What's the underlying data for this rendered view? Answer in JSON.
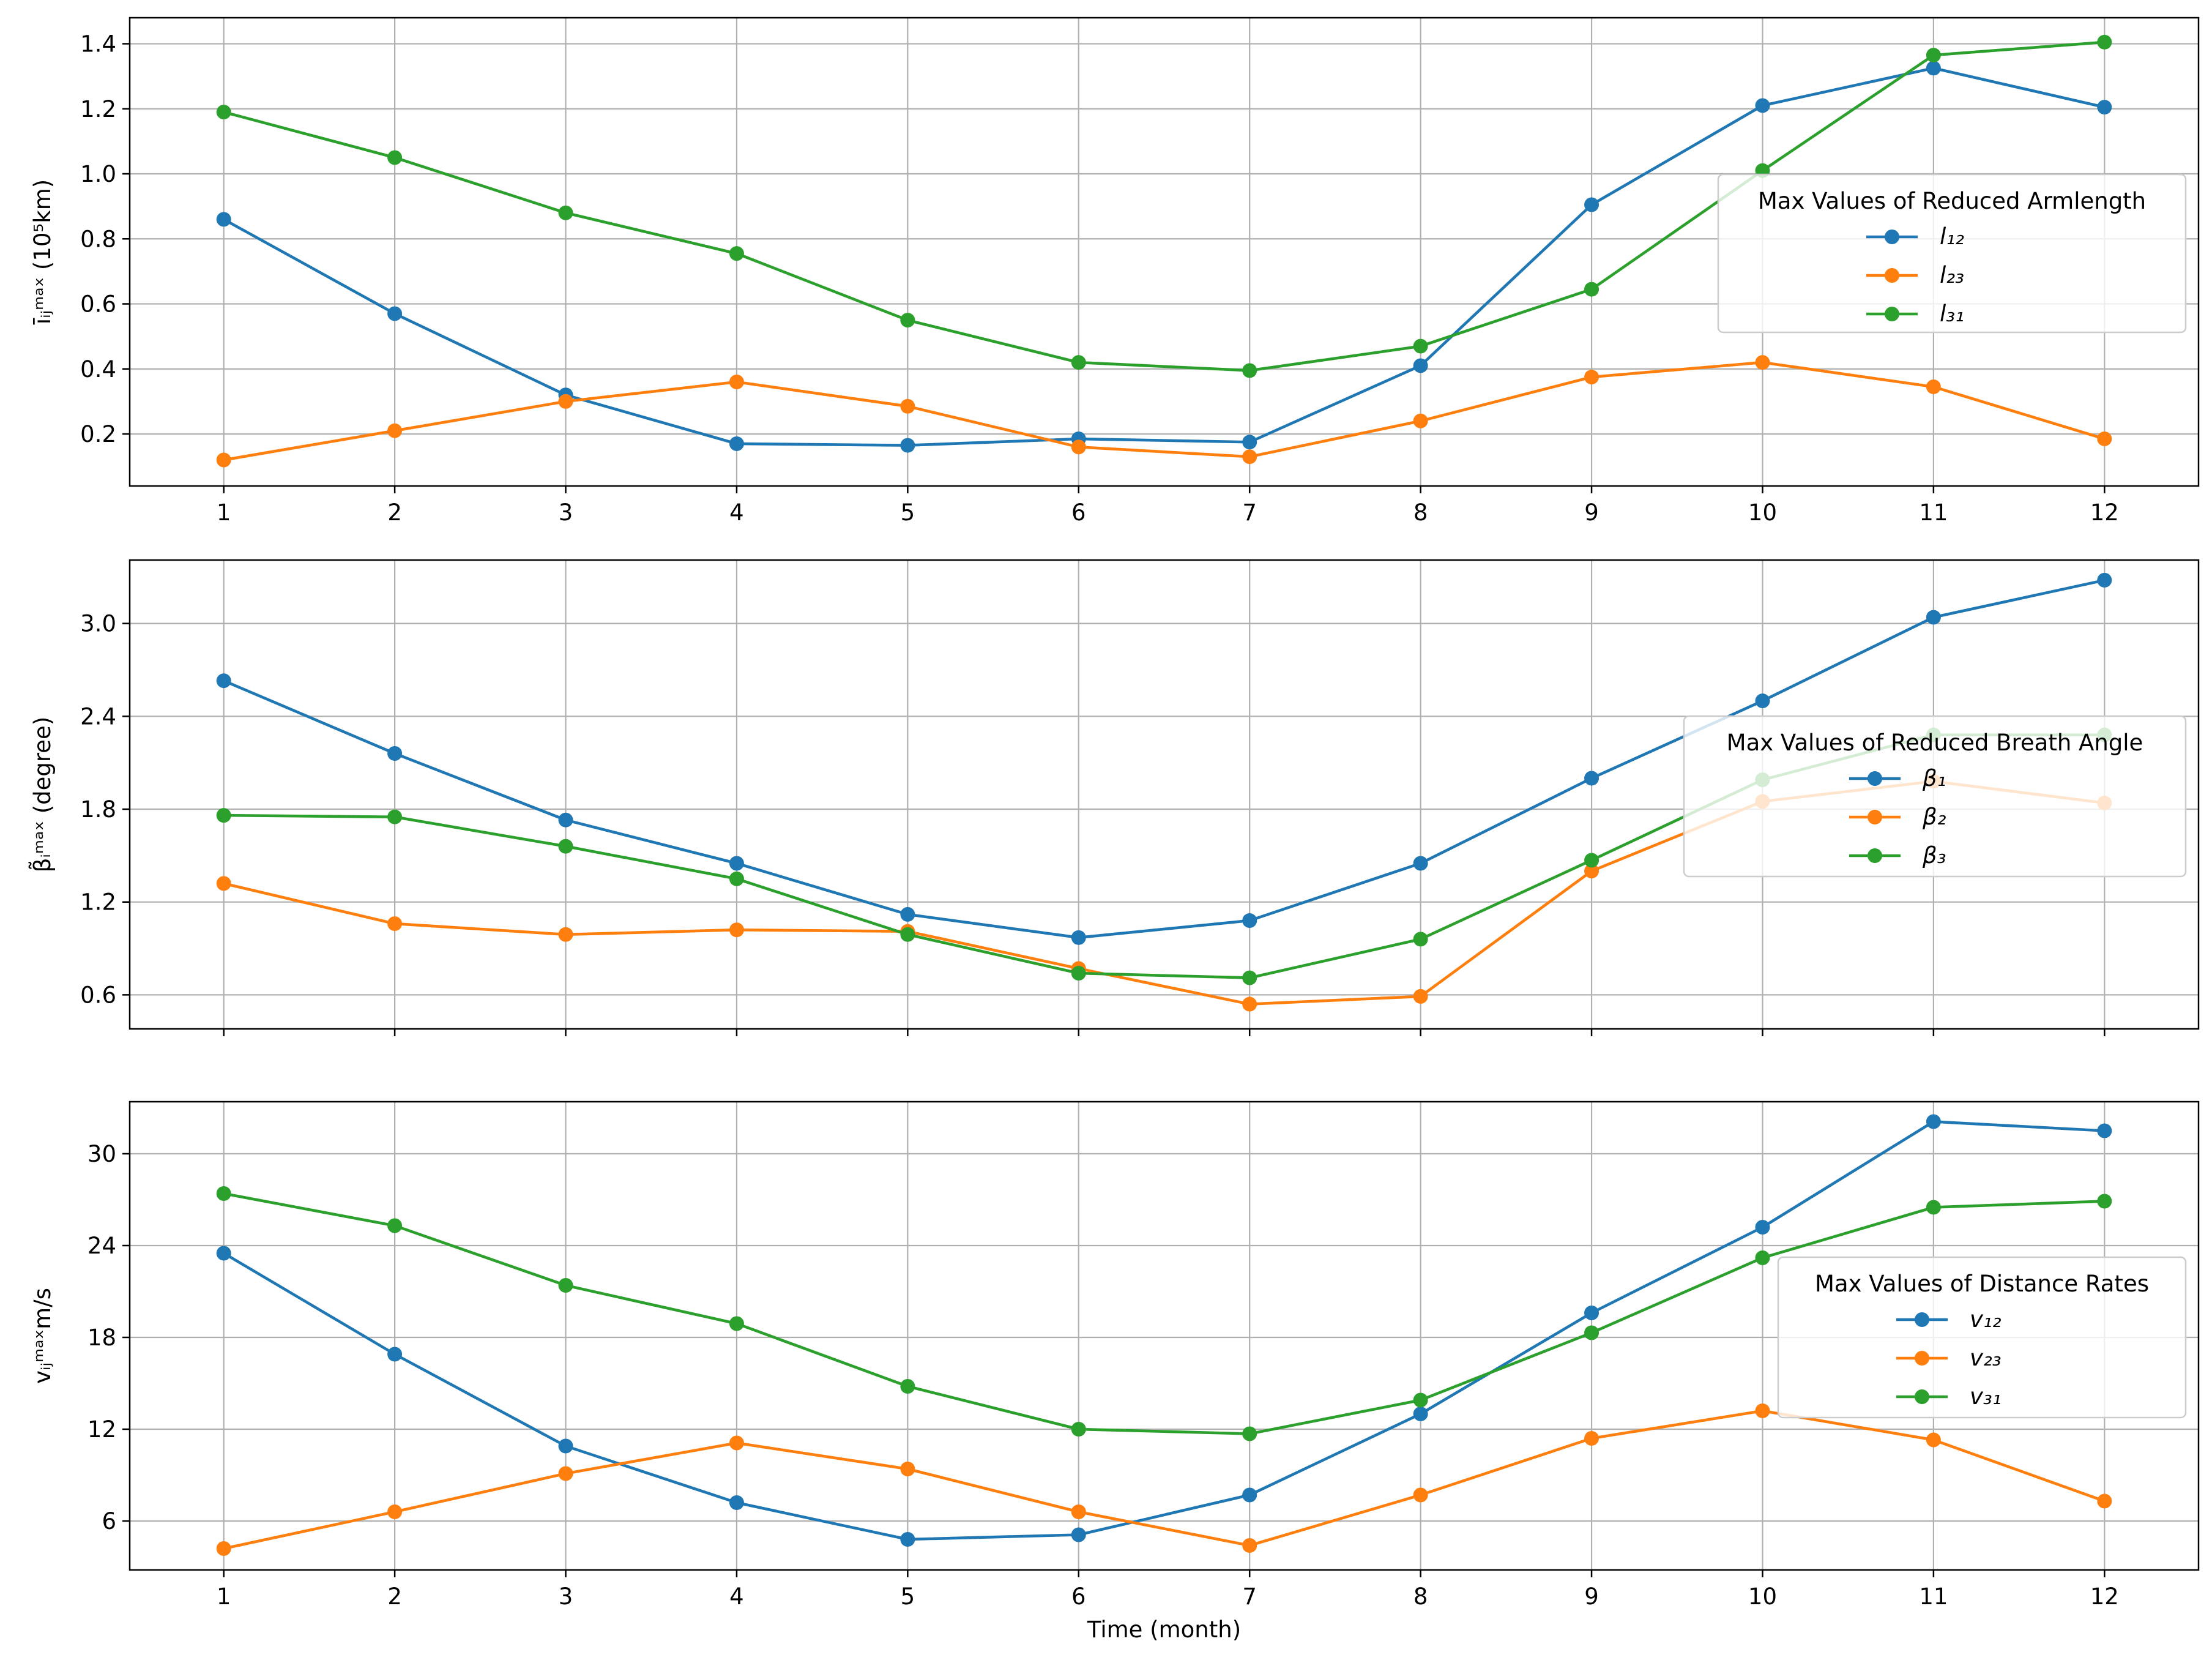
{
  "chart_data": [
    {
      "type": "line",
      "x": [
        1,
        2,
        3,
        4,
        5,
        6,
        7,
        8,
        9,
        10,
        11,
        12
      ],
      "xticks": [
        "1",
        "2",
        "3",
        "4",
        "5",
        "6",
        "7",
        "8",
        "9",
        "10",
        "11",
        "12"
      ],
      "show_xtick_labels": true,
      "ylabel": "īᵢⱼᵐᵃˣ (10⁵km)",
      "xlabel": "",
      "ylim": [
        0.04,
        1.48
      ],
      "yticks": [
        0.2,
        0.4,
        0.6,
        0.8,
        1.0,
        1.2,
        1.4
      ],
      "ytick_labels": [
        "0.2",
        "0.4",
        "0.6",
        "0.8",
        "1.0",
        "1.2",
        "1.4"
      ],
      "grid": true,
      "legend": {
        "title": "Max Values of Reduced Armlength",
        "placement": "center-right",
        "labels": [
          "l₁₂",
          "l₂₃",
          "l₃₁"
        ]
      },
      "series": [
        {
          "name": "l₁₂",
          "color": "#1f77b4",
          "values": [
            0.86,
            0.57,
            0.32,
            0.17,
            0.165,
            0.185,
            0.175,
            0.41,
            0.905,
            1.21,
            1.325,
            1.205
          ]
        },
        {
          "name": "l₂₃",
          "color": "#ff7f0e",
          "values": [
            0.12,
            0.21,
            0.3,
            0.36,
            0.285,
            0.16,
            0.13,
            0.24,
            0.375,
            0.42,
            0.345,
            0.185
          ]
        },
        {
          "name": "l₃₁",
          "color": "#2ca02c",
          "values": [
            1.19,
            1.05,
            0.88,
            0.755,
            0.55,
            0.42,
            0.395,
            0.47,
            0.645,
            1.01,
            1.365,
            1.405
          ]
        }
      ]
    },
    {
      "type": "line",
      "x": [
        1,
        2,
        3,
        4,
        5,
        6,
        7,
        8,
        9,
        10,
        11,
        12
      ],
      "xticks": [
        "1",
        "2",
        "3",
        "4",
        "5",
        "6",
        "7",
        "8",
        "9",
        "10",
        "11",
        "12"
      ],
      "show_xtick_labels": false,
      "ylabel": "β̃ᵢᵐᵃˣ (degree)",
      "xlabel": "",
      "ylim": [
        0.38,
        3.41
      ],
      "yticks": [
        0.6,
        1.2,
        1.8,
        2.4,
        3.0
      ],
      "ytick_labels": [
        "0.6",
        "1.2",
        "1.8",
        "2.4",
        "3.0"
      ],
      "grid": true,
      "legend": {
        "title": "Max Values of Reduced Breath Angle",
        "placement": "center-right",
        "labels": [
          "β₁",
          "β₂",
          "β₃"
        ]
      },
      "series": [
        {
          "name": "β₁",
          "color": "#1f77b4",
          "values": [
            2.63,
            2.16,
            1.73,
            1.45,
            1.12,
            0.97,
            1.08,
            1.45,
            2.0,
            2.5,
            3.04,
            3.28
          ]
        },
        {
          "name": "β₂",
          "color": "#ff7f0e",
          "values": [
            1.32,
            1.06,
            0.99,
            1.02,
            1.01,
            0.77,
            0.54,
            0.59,
            1.4,
            1.85,
            1.98,
            1.84
          ]
        },
        {
          "name": "β₃",
          "color": "#2ca02c",
          "values": [
            1.76,
            1.75,
            1.56,
            1.35,
            0.99,
            0.74,
            0.71,
            0.96,
            1.47,
            1.99,
            2.28,
            2.28
          ]
        }
      ]
    },
    {
      "type": "line",
      "x": [
        1,
        2,
        3,
        4,
        5,
        6,
        7,
        8,
        9,
        10,
        11,
        12
      ],
      "xticks": [
        "1",
        "2",
        "3",
        "4",
        "5",
        "6",
        "7",
        "8",
        "9",
        "10",
        "11",
        "12"
      ],
      "show_xtick_labels": true,
      "ylabel": "vᵢⱼᵐᵃˣm/s",
      "xlabel": "Time (month)",
      "ylim": [
        2.8,
        33.4
      ],
      "yticks": [
        6,
        12,
        18,
        24,
        30
      ],
      "ytick_labels": [
        "6",
        "12",
        "18",
        "24",
        "30"
      ],
      "grid": true,
      "legend": {
        "title": "Max Values of Distance Rates",
        "placement": "center-right",
        "labels": [
          "v₁₂",
          "v₂₃",
          "v₃₁"
        ]
      },
      "series": [
        {
          "name": "v₁₂",
          "color": "#1f77b4",
          "values": [
            23.5,
            16.9,
            10.9,
            7.2,
            4.8,
            5.1,
            7.7,
            13.0,
            19.6,
            25.2,
            32.1,
            31.5
          ]
        },
        {
          "name": "v₂₃",
          "color": "#ff7f0e",
          "values": [
            4.2,
            6.6,
            9.1,
            11.1,
            9.4,
            6.6,
            4.4,
            7.7,
            11.4,
            13.2,
            11.3,
            7.3
          ]
        },
        {
          "name": "v₃₁",
          "color": "#2ca02c",
          "values": [
            27.4,
            25.3,
            21.4,
            18.9,
            14.8,
            12.0,
            11.7,
            13.9,
            18.3,
            23.2,
            26.5,
            26.9
          ]
        }
      ]
    }
  ]
}
